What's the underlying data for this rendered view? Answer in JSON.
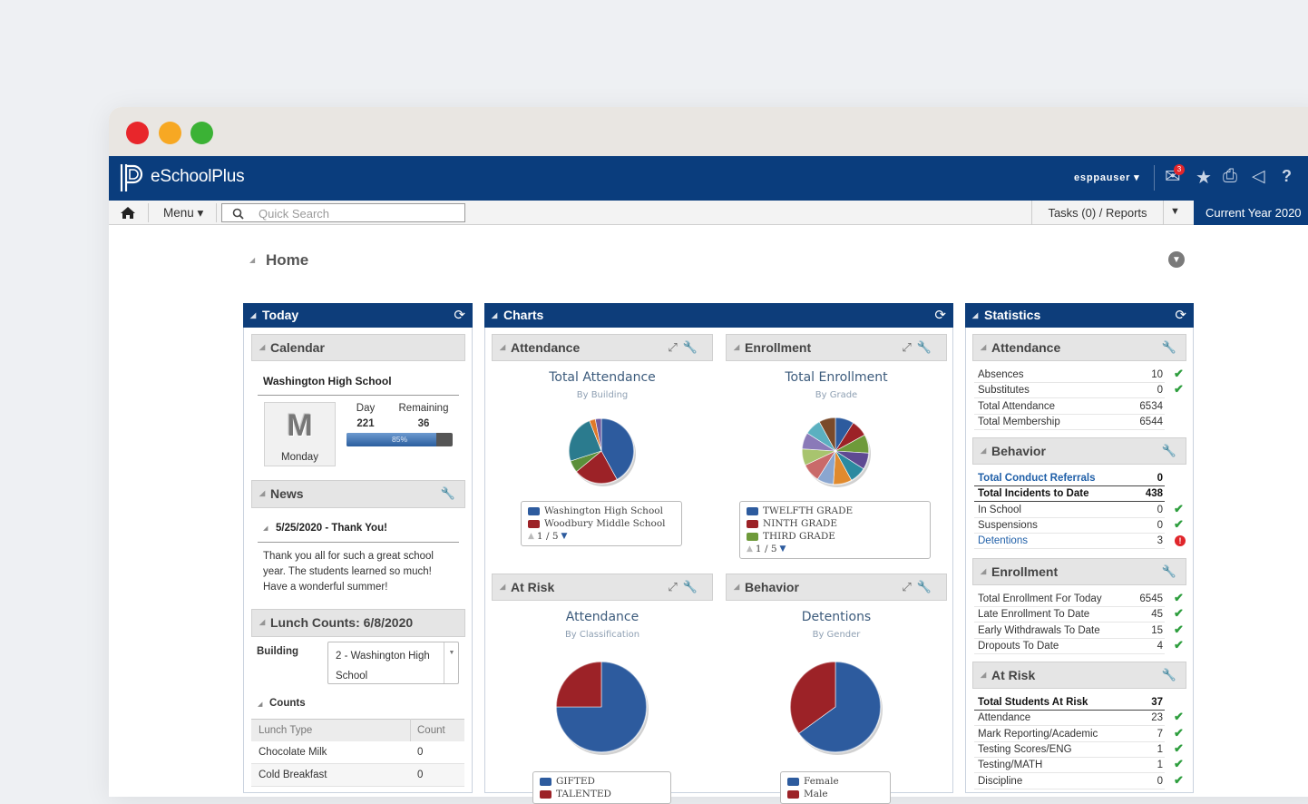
{
  "header": {
    "app_name": "eSchoolPlus",
    "user": "esppauser",
    "mail_badge": "3"
  },
  "toolbar": {
    "menu": "Menu",
    "search_placeholder": "Quick Search",
    "tasks": "Tasks (0) / Reports",
    "year": "Current Year 2020"
  },
  "page_title": "Home",
  "today": {
    "title": "Today",
    "calendar": {
      "title": "Calendar",
      "school": "Washington High School",
      "day_letter": "M",
      "weekday": "Monday",
      "day_label": "Day",
      "remaining_label": "Remaining",
      "day": 221,
      "remaining": 36,
      "progress": {
        "value": 85,
        "label": "85%"
      }
    },
    "news": {
      "title": "News",
      "item_title": "5/25/2020 - Thank You!",
      "item_text": "Thank you all for such a great school year. The students learned so much! Have a wonderful summer!"
    },
    "lunch": {
      "title": "Lunch Counts: 6/8/2020",
      "building_label": "Building",
      "building_value": "2 - Washington High School",
      "counts_title": "Counts",
      "columns": [
        "Lunch Type",
        "Count"
      ],
      "rows": [
        [
          "Chocolate Milk",
          0
        ],
        [
          "Cold Breakfast",
          0
        ]
      ]
    }
  },
  "charts": {
    "title": "Charts",
    "panels": [
      {
        "header": "Attendance",
        "title": "Total Attendance",
        "subtitle": "By Building",
        "slices": [
          {
            "value": 42,
            "color": "#2d5b9e"
          },
          {
            "value": 22,
            "color": "#9c2227"
          },
          {
            "value": 6,
            "color": "#5b8f3a"
          },
          {
            "value": 24,
            "color": "#2b7b8e"
          },
          {
            "value": 3,
            "color": "#e0792a"
          },
          {
            "value": 3,
            "color": "#6d5aa0"
          }
        ],
        "legend": [
          {
            "name": "Washington High School",
            "color": "#2d5b9e"
          },
          {
            "name": "Woodbury Middle School",
            "color": "#9c2227"
          }
        ],
        "pager": "1 / 5"
      },
      {
        "header": "Enrollment",
        "title": "Total Enrollment",
        "subtitle": "By Grade",
        "slices": [
          {
            "value": 9,
            "color": "#2d5b9e"
          },
          {
            "value": 8,
            "color": "#9c2227"
          },
          {
            "value": 9,
            "color": "#6e9a3a"
          },
          {
            "value": 8,
            "color": "#5e4a92"
          },
          {
            "value": 8,
            "color": "#2b8aa0"
          },
          {
            "value": 9,
            "color": "#e08a2e"
          },
          {
            "value": 8,
            "color": "#8aa6d0"
          },
          {
            "value": 9,
            "color": "#c96a6a"
          },
          {
            "value": 8,
            "color": "#a8c46e"
          },
          {
            "value": 8,
            "color": "#8a7ab8"
          },
          {
            "value": 8,
            "color": "#5bb0c0"
          },
          {
            "value": 8,
            "color": "#7a4a2a"
          }
        ],
        "legend": [
          {
            "name": "TWELFTH GRADE",
            "color": "#2d5b9e"
          },
          {
            "name": "NINTH GRADE",
            "color": "#9c2227"
          },
          {
            "name": "THIRD GRADE",
            "color": "#6e9a3a"
          }
        ],
        "pager": "1 / 5"
      },
      {
        "header": "At Risk",
        "title": "Attendance",
        "subtitle": "By Classification",
        "slices": [
          {
            "value": 75,
            "color": "#2d5b9e"
          },
          {
            "value": 25,
            "color": "#9c2227"
          }
        ],
        "legend": [
          {
            "name": "GIFTED",
            "color": "#2d5b9e"
          },
          {
            "name": "TALENTED",
            "color": "#9c2227"
          }
        ]
      },
      {
        "header": "Behavior",
        "title": "Detentions",
        "subtitle": "By Gender",
        "slices": [
          {
            "value": 65,
            "color": "#2d5b9e"
          },
          {
            "value": 35,
            "color": "#9c2227"
          }
        ],
        "legend": [
          {
            "name": "Female",
            "color": "#2d5b9e"
          },
          {
            "name": "Male",
            "color": "#9c2227"
          }
        ]
      }
    ]
  },
  "statistics": {
    "title": "Statistics",
    "sections": [
      {
        "title": "Attendance",
        "rows": [
          {
            "label": "Absences",
            "value": 10,
            "status": "ok"
          },
          {
            "label": "Substitutes",
            "value": 0,
            "status": "ok"
          },
          {
            "label": "Total Attendance",
            "value": 6534
          },
          {
            "label": "Total Membership",
            "value": 6544
          }
        ]
      },
      {
        "title": "Behavior",
        "rows": [
          {
            "label": "Total Conduct Referrals",
            "value": 0,
            "style": "link-bold"
          },
          {
            "label": "Total Incidents to Date",
            "value": 438,
            "style": "bold"
          },
          {
            "label": "In School",
            "value": 0,
            "status": "ok"
          },
          {
            "label": "Suspensions",
            "value": 0,
            "status": "ok"
          },
          {
            "label": "Detentions",
            "value": 3,
            "status": "alert",
            "style": "link"
          }
        ]
      },
      {
        "title": "Enrollment",
        "rows": [
          {
            "label": "Total Enrollment For Today",
            "value": 6545,
            "status": "ok"
          },
          {
            "label": "Late Enrollment To Date",
            "value": 45,
            "status": "ok"
          },
          {
            "label": "Early Withdrawals To Date",
            "value": 15,
            "status": "ok"
          },
          {
            "label": "Dropouts To Date",
            "value": 4,
            "status": "ok"
          }
        ]
      },
      {
        "title": "At Risk",
        "rows": [
          {
            "label": "Total Students At Risk",
            "value": 37,
            "style": "bold"
          },
          {
            "label": "Attendance",
            "value": 23,
            "status": "ok"
          },
          {
            "label": "Mark Reporting/Academic",
            "value": 7,
            "status": "ok"
          },
          {
            "label": "Testing Scores/ENG",
            "value": 1,
            "status": "ok"
          },
          {
            "label": "Testing/MATH",
            "value": 1,
            "status": "ok"
          },
          {
            "label": "Discipline",
            "value": 0,
            "status": "ok"
          }
        ]
      }
    ]
  }
}
